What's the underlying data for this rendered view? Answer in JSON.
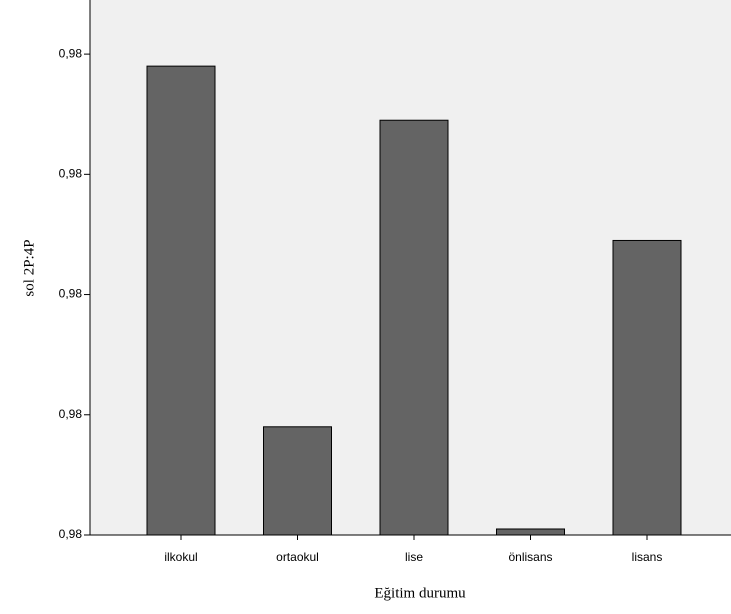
{
  "chart_data": {
    "type": "bar",
    "x_label": "Eğitim durumu",
    "y_label": "sol 2P:4P",
    "categories": [
      "ilkokul",
      "ortaokul",
      "lise",
      "önlisans",
      "lisans"
    ],
    "values": [
      0.98078,
      0.98018,
      0.98069,
      0.98001,
      0.98049
    ],
    "color": "#646464",
    "ylim": [
      0.98,
      0.98089
    ],
    "yticks": [
      {
        "value": 0.98,
        "label": "0,98"
      },
      {
        "value": 0.9802,
        "label": "0,98"
      },
      {
        "value": 0.9804,
        "label": "0,98"
      },
      {
        "value": 0.9806,
        "label": "0,98"
      },
      {
        "value": 0.9808,
        "label": "0,98"
      }
    ],
    "grid": false
  }
}
